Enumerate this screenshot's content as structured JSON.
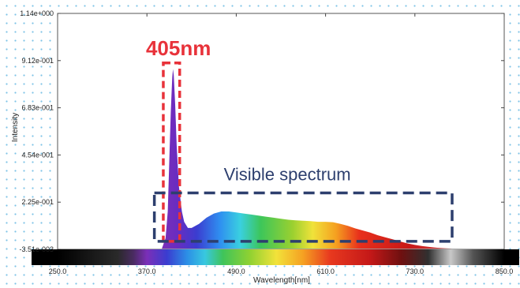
{
  "chart_data": {
    "type": "line",
    "title": "",
    "xlabel": "Wavelength[nm]",
    "ylabel": "Intensity",
    "xlim": [
      250.0,
      850.0
    ],
    "ylim": [
      -0.00351,
      1.14
    ],
    "x_ticks": [
      "250.0",
      "370.0",
      "490.0",
      "610.0",
      "730.0",
      "850.0"
    ],
    "y_ticks": [
      "1.14e+000",
      "9.12e-001",
      "6.83e-001",
      "4.54e-001",
      "2.25e-001",
      "-3.51e-003"
    ],
    "grid": false,
    "series": [
      {
        "x": [
          390,
          395,
          398,
          400,
          402,
          404,
          405,
          406,
          408,
          410,
          413,
          417,
          420,
          425,
          430,
          440,
          450,
          460,
          470,
          480,
          490,
          500,
          510,
          520,
          530,
          540,
          550,
          560,
          570,
          580,
          590,
          600,
          610,
          620,
          630,
          640,
          650,
          660,
          670,
          680,
          690,
          700,
          710,
          720,
          730,
          740,
          750,
          760,
          770,
          780
        ],
        "y": [
          0.0,
          0.05,
          0.18,
          0.42,
          0.66,
          0.83,
          0.87,
          0.84,
          0.7,
          0.5,
          0.3,
          0.18,
          0.13,
          0.1,
          0.1,
          0.12,
          0.15,
          0.17,
          0.18,
          0.18,
          0.175,
          0.17,
          0.165,
          0.16,
          0.155,
          0.15,
          0.145,
          0.14,
          0.137,
          0.135,
          0.133,
          0.13,
          0.13,
          0.128,
          0.12,
          0.11,
          0.098,
          0.088,
          0.078,
          0.065,
          0.055,
          0.045,
          0.035,
          0.025,
          0.018,
          0.012,
          0.008,
          0.004,
          0.002,
          0.0
        ]
      }
    ],
    "annotations": [
      {
        "text": "405nm",
        "color": "#e8323a",
        "box_x": [
          392,
          414
        ],
        "box_y": [
          0.035,
          0.9
        ]
      },
      {
        "text": "Visible spectrum",
        "color": "#2d3f6e",
        "box_x": [
          380,
          780
        ],
        "box_y": [
          0.035,
          0.27
        ]
      }
    ]
  }
}
